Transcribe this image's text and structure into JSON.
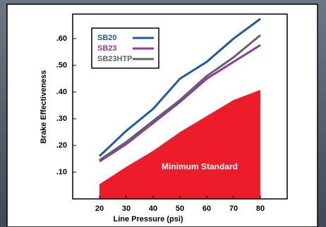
{
  "chart_data": {
    "type": "line",
    "x_label": "Line Pressure (psi)",
    "y_label": "Brake Effectiveness",
    "x": [
      20,
      30,
      40,
      50,
      60,
      70,
      80
    ],
    "series": [
      {
        "name": "SB20",
        "color": "#1f5aa6",
        "values": [
          0.16,
          0.255,
          0.337,
          0.45,
          0.513,
          0.6,
          0.674
        ]
      },
      {
        "name": "SB23",
        "color": "#8e3a9e",
        "values": [
          0.14,
          0.205,
          0.284,
          0.363,
          0.45,
          0.513,
          0.576
        ]
      },
      {
        "name": "SB23HTP",
        "color": "#5f6367",
        "values": [
          0.145,
          0.213,
          0.292,
          0.37,
          0.46,
          0.53,
          0.613
        ]
      }
    ],
    "area": {
      "name": "Minimum Standard",
      "color": "#ec1c2a",
      "values": [
        0.055,
        0.12,
        0.18,
        0.25,
        0.31,
        0.37,
        0.408
      ]
    },
    "xlim": [
      10,
      90
    ],
    "ylim": [
      0,
      0.692
    ],
    "xticks": [
      20,
      30,
      40,
      50,
      60,
      70,
      80
    ],
    "yticks": [
      {
        "value": 0.1,
        "label": ".10"
      },
      {
        "value": 0.2,
        "label": ".20"
      },
      {
        "value": 0.3,
        "label": ".30"
      },
      {
        "value": 0.4,
        "label": ".40"
      },
      {
        "value": 0.5,
        "label": ".50"
      },
      {
        "value": 0.6,
        "label": ".60"
      }
    ],
    "legend": "upper left"
  }
}
